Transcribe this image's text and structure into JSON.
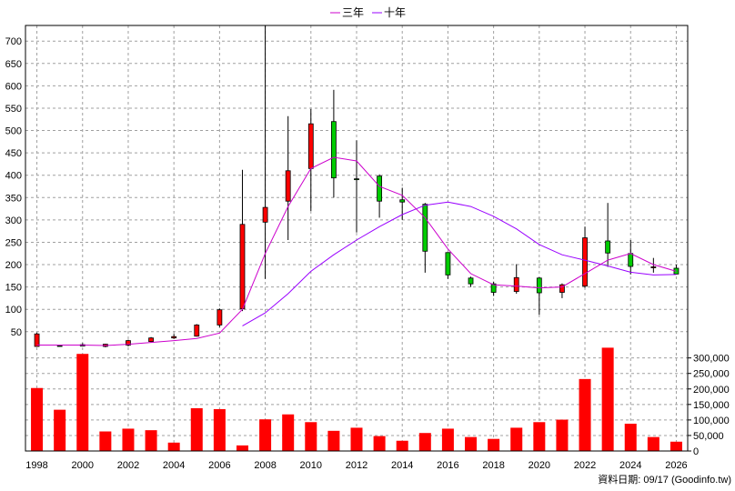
{
  "chart_data": {
    "type": "candlestick+bar",
    "legend": [
      {
        "name": "三年",
        "color": "#cc00cc"
      },
      {
        "name": "十年",
        "color": "#9900ff"
      }
    ],
    "footer": "資料日期: 09/17  (Goodinfo.tw)",
    "x_ticks": [
      "1998",
      "2000",
      "2002",
      "2004",
      "2006",
      "2008",
      "2010",
      "2012",
      "2014",
      "2016",
      "2018",
      "2020",
      "2022",
      "2024",
      "2026"
    ],
    "x_range": [
      1997.5,
      2026.5
    ],
    "price_axis": {
      "ticks": [
        50,
        100,
        150,
        200,
        250,
        300,
        350,
        400,
        450,
        500,
        550,
        600,
        650,
        700
      ],
      "range": [
        15,
        735
      ]
    },
    "volume_axis": {
      "ticks": [
        "0",
        "50,000",
        "100,000",
        "150,000",
        "200,000",
        "250,000",
        "300,000"
      ],
      "range": [
        0,
        340000
      ]
    },
    "up_color": "#ff0000",
    "down_color": "#00cc00",
    "candles": [
      {
        "year": 1998,
        "open": 17,
        "high": 48,
        "low": 17,
        "close": 45
      },
      {
        "year": 1999,
        "open": 19,
        "high": 20,
        "low": 17,
        "close": 18
      },
      {
        "year": 2000,
        "open": 21,
        "high": 24,
        "low": 17,
        "close": 18
      },
      {
        "year": 2001,
        "open": 17,
        "high": 23,
        "low": 15,
        "close": 22
      },
      {
        "year": 2002,
        "open": 20,
        "high": 32,
        "low": 17,
        "close": 30
      },
      {
        "year": 2003,
        "open": 28,
        "high": 38,
        "low": 26,
        "close": 36
      },
      {
        "year": 2004,
        "open": 36,
        "high": 45,
        "low": 34,
        "close": 39
      },
      {
        "year": 2005,
        "open": 40,
        "high": 67,
        "low": 39,
        "close": 65
      },
      {
        "year": 2006,
        "open": 65,
        "high": 102,
        "low": 60,
        "close": 99
      },
      {
        "year": 2007,
        "open": 101,
        "high": 412,
        "low": 96,
        "close": 290
      },
      {
        "year": 2008,
        "open": 295,
        "high": 735,
        "low": 168,
        "close": 328
      },
      {
        "year": 2009,
        "open": 342,
        "high": 532,
        "low": 255,
        "close": 410
      },
      {
        "year": 2010,
        "open": 415,
        "high": 548,
        "low": 320,
        "close": 515
      },
      {
        "year": 2011,
        "open": 520,
        "high": 591,
        "low": 350,
        "close": 394
      },
      {
        "year": 2012,
        "open": 392,
        "high": 478,
        "low": 272,
        "close": 390
      },
      {
        "year": 2013,
        "open": 398,
        "high": 402,
        "low": 305,
        "close": 342
      },
      {
        "year": 2014,
        "open": 345,
        "high": 372,
        "low": 300,
        "close": 340
      },
      {
        "year": 2015,
        "open": 335,
        "high": 338,
        "low": 182,
        "close": 230
      },
      {
        "year": 2016,
        "open": 227,
        "high": 228,
        "low": 168,
        "close": 177
      },
      {
        "year": 2017,
        "open": 170,
        "high": 173,
        "low": 150,
        "close": 157
      },
      {
        "year": 2018,
        "open": 157,
        "high": 162,
        "low": 130,
        "close": 138
      },
      {
        "year": 2019,
        "open": 140,
        "high": 201,
        "low": 135,
        "close": 171
      },
      {
        "year": 2020,
        "open": 170,
        "high": 172,
        "low": 88,
        "close": 137
      },
      {
        "year": 2021,
        "open": 138,
        "high": 158,
        "low": 125,
        "close": 155
      },
      {
        "year": 2022,
        "open": 152,
        "high": 285,
        "low": 148,
        "close": 260
      },
      {
        "year": 2023,
        "open": 253,
        "high": 338,
        "low": 195,
        "close": 226
      },
      {
        "year": 2024,
        "open": 225,
        "high": 255,
        "low": 178,
        "close": 196
      },
      {
        "year": 2025,
        "open": 195,
        "high": 215,
        "low": 182,
        "close": 195
      },
      {
        "year": 2026,
        "open": 192,
        "high": 200,
        "low": 180,
        "close": 179
      }
    ],
    "ma3": [
      [
        1998,
        20
      ],
      [
        2000,
        20
      ],
      [
        2001,
        19
      ],
      [
        2002,
        22
      ],
      [
        2003,
        26
      ],
      [
        2004,
        30
      ],
      [
        2005,
        35
      ],
      [
        2006,
        47
      ],
      [
        2007,
        100
      ],
      [
        2008,
        225
      ],
      [
        2009,
        330
      ],
      [
        2010,
        415
      ],
      [
        2011,
        440
      ],
      [
        2012,
        432
      ],
      [
        2013,
        375
      ],
      [
        2014,
        355
      ],
      [
        2015,
        305
      ],
      [
        2016,
        235
      ],
      [
        2017,
        180
      ],
      [
        2018,
        155
      ],
      [
        2019,
        152
      ],
      [
        2020,
        148
      ],
      [
        2021,
        150
      ],
      [
        2022,
        180
      ],
      [
        2023,
        210
      ],
      [
        2024,
        225
      ],
      [
        2025,
        200
      ],
      [
        2026,
        185
      ]
    ],
    "ma10": [
      [
        2007,
        63
      ],
      [
        2008,
        92
      ],
      [
        2009,
        135
      ],
      [
        2010,
        185
      ],
      [
        2011,
        222
      ],
      [
        2012,
        255
      ],
      [
        2013,
        285
      ],
      [
        2014,
        312
      ],
      [
        2015,
        333
      ],
      [
        2016,
        340
      ],
      [
        2017,
        330
      ],
      [
        2018,
        308
      ],
      [
        2019,
        280
      ],
      [
        2020,
        245
      ],
      [
        2021,
        222
      ],
      [
        2022,
        210
      ],
      [
        2023,
        197
      ],
      [
        2024,
        183
      ],
      [
        2025,
        177
      ],
      [
        2026,
        178
      ]
    ],
    "volume": [
      {
        "year": 1998,
        "value": 203000
      },
      {
        "year": 1999,
        "value": 133000
      },
      {
        "year": 2000,
        "value": 313000
      },
      {
        "year": 2001,
        "value": 63000
      },
      {
        "year": 2002,
        "value": 72000
      },
      {
        "year": 2003,
        "value": 67000
      },
      {
        "year": 2004,
        "value": 27000
      },
      {
        "year": 2005,
        "value": 138000
      },
      {
        "year": 2006,
        "value": 135000
      },
      {
        "year": 2007,
        "value": 18000
      },
      {
        "year": 2008,
        "value": 102000
      },
      {
        "year": 2009,
        "value": 118000
      },
      {
        "year": 2010,
        "value": 93000
      },
      {
        "year": 2011,
        "value": 65000
      },
      {
        "year": 2012,
        "value": 75000
      },
      {
        "year": 2013,
        "value": 48000
      },
      {
        "year": 2014,
        "value": 33000
      },
      {
        "year": 2015,
        "value": 58000
      },
      {
        "year": 2016,
        "value": 72000
      },
      {
        "year": 2017,
        "value": 45000
      },
      {
        "year": 2018,
        "value": 39000
      },
      {
        "year": 2019,
        "value": 75000
      },
      {
        "year": 2020,
        "value": 93000
      },
      {
        "year": 2021,
        "value": 101000
      },
      {
        "year": 2022,
        "value": 232000
      },
      {
        "year": 2023,
        "value": 333000
      },
      {
        "year": 2024,
        "value": 88000
      },
      {
        "year": 2025,
        "value": 45000
      },
      {
        "year": 2026,
        "value": 30000
      }
    ]
  }
}
